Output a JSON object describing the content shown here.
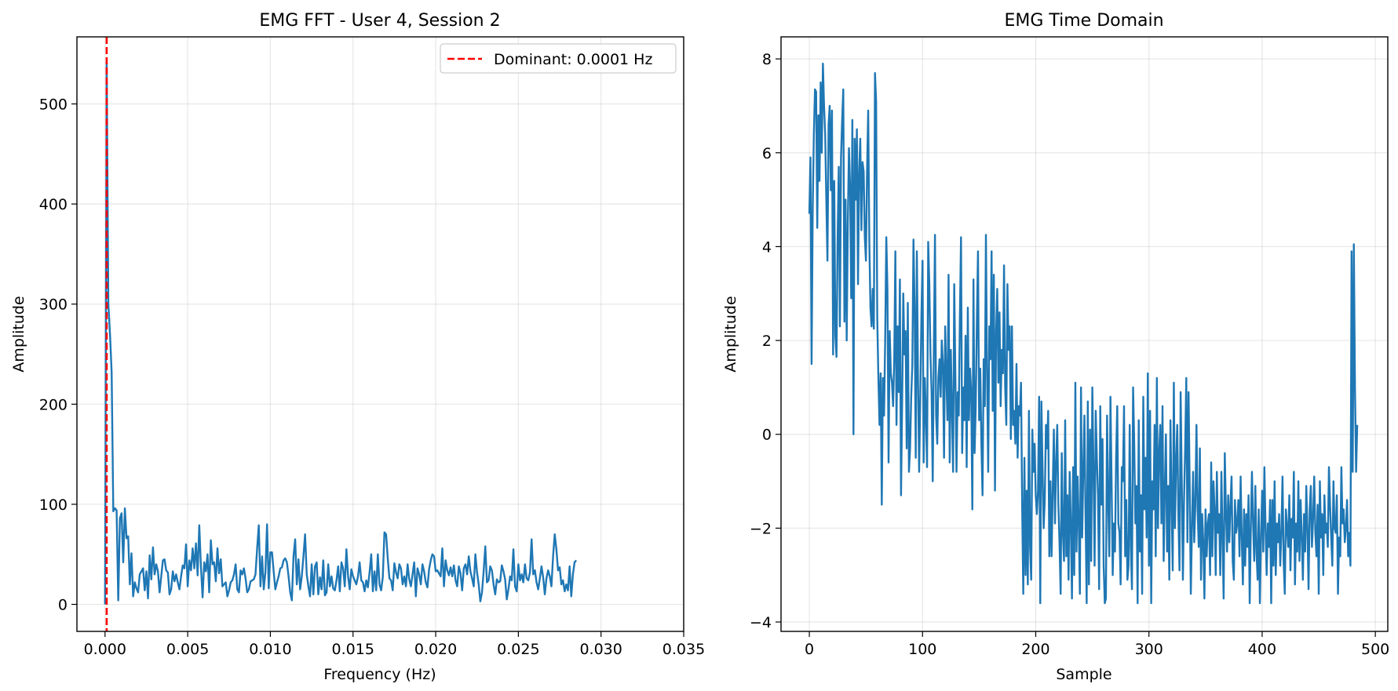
{
  "chart_data": [
    {
      "type": "line",
      "title": "EMG FFT - User 4, Session 2",
      "xlabel": "Frequency (Hz)",
      "ylabel": "Amplitude",
      "xlim": [
        -0.0017,
        0.035
      ],
      "ylim": [
        -27,
        567
      ],
      "xticks": [
        0.0,
        0.005,
        0.01,
        0.015,
        0.02,
        0.025,
        0.03,
        0.035
      ],
      "xtick_labels": [
        "0.000",
        "0.005",
        "0.010",
        "0.015",
        "0.020",
        "0.025",
        "0.030",
        "0.035"
      ],
      "yticks": [
        0,
        100,
        200,
        300,
        400,
        500
      ],
      "ytick_labels": [
        "0",
        "100",
        "200",
        "300",
        "400",
        "500"
      ],
      "grid": true,
      "legend_position": "top-right",
      "colors": {
        "line": "#1f77b4",
        "dominant": "#ff0000"
      },
      "dominant": {
        "label": "Dominant: 0.0001 Hz",
        "x": 0.0001
      },
      "x_start": 0.0,
      "x_step": 0.0001,
      "series": [
        {
          "values": [
            0,
            541,
            300,
            270,
            232,
            93,
            96,
            94,
            4,
            86,
            91,
            42,
            96,
            66,
            68,
            20,
            51,
            8,
            22,
            16,
            12,
            30,
            33,
            36,
            14,
            33,
            6,
            49,
            25,
            57,
            30,
            40,
            33,
            12,
            28,
            44,
            45,
            34,
            32,
            10,
            15,
            33,
            23,
            30,
            22,
            15,
            28,
            39,
            36,
            60,
            18,
            44,
            34,
            56,
            36,
            61,
            29,
            79,
            38,
            7,
            42,
            33,
            50,
            12,
            64,
            40,
            42,
            23,
            56,
            31,
            45,
            18,
            20,
            22,
            8,
            14,
            22,
            24,
            30,
            40,
            15,
            12,
            34,
            30,
            36,
            26,
            12,
            15,
            23,
            24,
            25,
            30,
            56,
            79,
            18,
            48,
            15,
            32,
            80,
            16,
            52,
            52,
            33,
            15,
            22,
            28,
            36,
            37,
            44,
            46,
            42,
            28,
            12,
            4,
            48,
            65,
            20,
            45,
            15,
            28,
            48,
            70,
            30,
            18,
            8,
            40,
            10,
            38,
            42,
            10,
            27,
            15,
            44,
            9,
            12,
            40,
            18,
            28,
            16,
            14,
            24,
            38,
            13,
            42,
            36,
            18,
            55,
            28,
            15,
            35,
            28,
            24,
            20,
            28,
            42,
            24,
            22,
            13,
            24,
            17,
            32,
            50,
            13,
            33,
            14,
            50,
            20,
            14,
            27,
            72,
            70,
            46,
            26,
            24,
            14,
            41,
            32,
            26,
            40,
            36,
            20,
            28,
            18,
            40,
            25,
            18,
            30,
            42,
            8,
            36,
            30,
            20,
            40,
            33,
            22,
            17,
            35,
            44,
            50,
            48,
            33,
            34,
            31,
            28,
            56,
            18,
            44,
            34,
            29,
            37,
            28,
            39,
            24,
            18,
            38,
            31,
            14,
            36,
            40,
            30,
            48,
            33,
            26,
            18,
            50,
            32,
            20,
            3,
            12,
            33,
            58,
            22,
            24,
            38,
            34,
            20,
            10,
            25,
            22,
            23,
            39,
            33,
            25,
            5,
            15,
            28,
            24,
            55,
            18,
            13,
            40,
            24,
            30,
            22,
            40,
            26,
            24,
            32,
            65,
            30,
            34,
            22,
            15,
            26,
            38,
            27,
            10,
            26,
            34,
            28,
            18,
            48,
            70,
            55,
            34,
            37,
            20,
            24,
            13,
            20,
            14,
            38,
            8,
            30,
            42,
            44
          ]
        }
      ]
    },
    {
      "type": "line",
      "title": "EMG Time Domain",
      "xlabel": "Sample",
      "ylabel": "Amplitude",
      "xlim": [
        -25,
        511
      ],
      "ylim": [
        -4.2,
        8.47
      ],
      "xticks": [
        0,
        100,
        200,
        300,
        400,
        500
      ],
      "xtick_labels": [
        "0",
        "100",
        "200",
        "300",
        "400",
        "500"
      ],
      "yticks": [
        -4,
        -2,
        0,
        2,
        4,
        6,
        8
      ],
      "ytick_labels": [
        "−4",
        "−2",
        "0",
        "2",
        "4",
        "6",
        "8"
      ],
      "grid": true,
      "colors": {
        "line": "#1f77b4"
      },
      "x_start": 0,
      "x_step": 1,
      "series": [
        {
          "values": [
            4.7,
            5.9,
            1.5,
            4.8,
            6.4,
            7.35,
            7.3,
            4.4,
            6.8,
            5.4,
            7.5,
            6.0,
            7.9,
            7.0,
            6.4,
            5.0,
            3.7,
            6.6,
            7.0,
            5.2,
            6.9,
            1.7,
            5.4,
            2.1,
            1.65,
            4.2,
            5.7,
            2.3,
            5.9,
            6.7,
            7.35,
            2.4,
            5.0,
            2.0,
            4.5,
            6.1,
            5.3,
            2.9,
            6.7,
            0.0,
            6.3,
            5.0,
            6.5,
            3.2,
            5.6,
            6.3,
            4.35,
            5.8,
            5.6,
            4.2,
            3.7,
            5.6,
            6.9,
            4.1,
            2.7,
            2.3,
            3.1,
            2.25,
            7.7,
            7.1,
            2.5,
            1.2,
            0.2,
            1.3,
            -1.5,
            1.2,
            0.4,
            2.0,
            4.2,
            3.1,
            -0.6,
            2.2,
            1.3,
            1.1,
            0.6,
            1.6,
            3.9,
            0.2,
            2.3,
            0.9,
            3.3,
            -1.3,
            0.7,
            3.0,
            1.7,
            2.2,
            -0.3,
            2.8,
            -0.8,
            -0.3,
            0.8,
            1.5,
            4.15,
            2.7,
            -0.5,
            3.9,
            1.2,
            -0.8,
            0.8,
            2.5,
            3.7,
            -0.6,
            1.2,
            0.4,
            -0.7,
            4.1,
            3.2,
            1.7,
            0.9,
            -1.0,
            1.8,
            4.25,
            0.4,
            -0.2,
            1.2,
            1.6,
            0.8,
            2.0,
            1.5,
            -0.5,
            2.3,
            1.3,
            0.3,
            3.4,
            -0.6,
            1.8,
            0.5,
            -0.8,
            3.2,
            1.3,
            -0.8,
            0.9,
            0.4,
            2.5,
            4.2,
            -0.4,
            1.0,
            0.3,
            2.1,
            -0.7,
            2.7,
            0.3,
            1.4,
            0.9,
            -1.6,
            3.3,
            -0.4,
            0.6,
            2.4,
            3.9,
            0.3,
            1.4,
            -0.2,
            -1.3,
            1.6,
            0.6,
            4.25,
            1.3,
            -0.8,
            2.3,
            1.6,
            3.9,
            0.5,
            3.4,
            -1.2,
            2.2,
            3.1,
            1.1,
            2.6,
            0.6,
            1.8,
            1.3,
            3.6,
            1.0,
            0.2,
            3.2,
            1.8,
            2.3,
            -0.1,
            2.3,
            0.2,
            0.5,
            -0.2,
            1.5,
            -0.5,
            0.6,
            0.4,
            1.1,
            -1.5,
            -3.4,
            -0.5,
            -3.0,
            -1.2,
            -3.2,
            0.5,
            -2.4,
            -3.1,
            0.1,
            -0.8,
            -0.2,
            -1.3,
            -1.7,
            -1.2,
            0.8,
            -3.6,
            0.7,
            -0.7,
            -2.0,
            -1.4,
            0.2,
            -0.3,
            0.5,
            -2.6,
            -1.0,
            -2.6,
            -1.2,
            0.1,
            -1.9,
            -0.6,
            0.2,
            -1.5,
            -2.3,
            -3.4,
            -0.4,
            -2.1,
            -2.7,
            0.3,
            -2.6,
            -1.3,
            -3.1,
            -0.8,
            -1.9,
            -3.5,
            -0.7,
            -3.0,
            1.1,
            -2.5,
            -0.9,
            -1.9,
            -3.4,
            1.0,
            -2.2,
            -0.8,
            0.4,
            -1.7,
            -3.6,
            0.7,
            -3.2,
            0.1,
            -2.7,
            1.0,
            -0.7,
            -2.8,
            0.5,
            -0.5,
            -1.3,
            -3.3,
            0.6,
            -1.5,
            -0.1,
            -2.8,
            -3.6,
            -3.5,
            0.4,
            -1.4,
            -2.6,
            0.8,
            -1.0,
            -3.0,
            -1.9,
            -2.5,
            -0.5,
            0.6,
            -1.9,
            -2.1,
            -3.2,
            -0.7,
            -1.0,
            0.6,
            -2.6,
            -1.4,
            -3.1,
            -2.8,
            0.2,
            -2.4,
            -3.3,
            1.0,
            -0.2,
            -1.9,
            -1.1,
            -3.6,
            0.3,
            -2.5,
            -1.3,
            -3.4,
            0.8,
            -1.6,
            -0.5,
            -2.2,
            1.3,
            -2.8,
            0.5,
            -3.6,
            -1.0,
            -1.6,
            0.2,
            -2.6,
            1.2,
            -2.0,
            -0.4,
            0.2,
            -1.9,
            0.6,
            -2.7,
            -1.2,
            0.0,
            -2.5,
            -1.1,
            -3.1,
            0.3,
            -1.4,
            -2.9,
            1.1,
            -2.0,
            -0.6,
            0.2,
            -1.7,
            -2.9,
            0.9,
            -1.0,
            -3.1,
            -1.4,
            -0.3,
            1.2,
            -2.3,
            0.9,
            -1.1,
            -3.4,
            -2.0,
            -0.8,
            -2.3,
            -1.5,
            0.2,
            -1.6,
            -2.4,
            -0.3,
            -3.1,
            -1.7,
            -2.3,
            -3.5,
            -1.6,
            -2.6,
            -1.9,
            -1.7,
            -3.0,
            -0.6,
            -2.6,
            -1.0,
            -1.6,
            -3.0,
            -0.8,
            -2.1,
            -1.7,
            -3.0,
            -0.8,
            -2.2,
            -3.5,
            -0.4,
            -1.6,
            -2.5,
            -1.3,
            -2.3,
            -1.5,
            -0.9,
            -2.7,
            -3.1,
            -1.4,
            -2.1,
            -1.9,
            -1.4,
            -2.6,
            -0.9,
            -2.2,
            -3.2,
            -1.6,
            -2.8,
            -1.7,
            -2.4,
            -1.3,
            -3.6,
            -2.0,
            -0.8,
            -1.9,
            -2.7,
            -1.1,
            -2.5,
            -3.1,
            -1.6,
            -3.6,
            -2.2,
            -1.2,
            -2.5,
            -0.7,
            -2.0,
            -3.0,
            -1.9,
            -2.4,
            -1.4,
            -3.6,
            -1.4,
            -2.8,
            -1.0,
            -3.0,
            -1.9,
            -2.3,
            -1.7,
            -2.8,
            -2.1,
            -0.9,
            -2.7,
            -3.4,
            -1.6,
            -2.0,
            -2.4,
            -1.3,
            -2.9,
            -1.8,
            -2.2,
            -0.8,
            -3.2,
            -1.9,
            -2.5,
            -1.0,
            -2.7,
            -1.4,
            -2.2,
            -3.1,
            -1.7,
            -2.5,
            -1.1,
            -2.0,
            -3.3,
            -1.6,
            -1.1,
            -2.4,
            -1.8,
            -0.9,
            -2.1,
            -2.6,
            -1.5,
            -3.4,
            -1.0,
            -2.2,
            -1.7,
            -3.0,
            -1.3,
            -2.1,
            -1.9,
            -2.4,
            -0.7,
            -1.5,
            -2.2,
            -2.8,
            -1.0,
            -2.0,
            -2.1,
            -1.3,
            -3.4,
            -2.2,
            -2.6,
            -0.7,
            -1.9,
            -1.6,
            -2.3,
            -2.0,
            -1.4,
            -2.6,
            -2.1,
            -2.8,
            3.9,
            -0.8,
            4.05,
            1.0,
            -0.8,
            0.2
          ]
        }
      ]
    }
  ]
}
